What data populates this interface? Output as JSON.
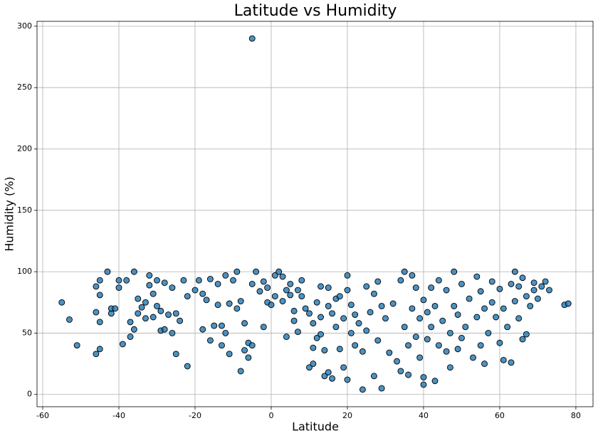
{
  "chart_data": {
    "type": "scatter",
    "title": "Latitude vs Humidity",
    "x_label": "Latitude",
    "y_label": "Humidity (%)",
    "xlim": [
      -61.5,
      84.5
    ],
    "ylim": [
      -10,
      304
    ],
    "xticks": [
      -60,
      -40,
      -20,
      0,
      20,
      40,
      60,
      80
    ],
    "yticks": [
      0,
      50,
      100,
      150,
      200,
      250,
      300
    ],
    "grid": true,
    "series": [
      {
        "color": "#1f77b4",
        "x": [
          -55,
          -53,
          -51,
          -46,
          -46,
          -45,
          -45,
          -45,
          -46,
          -45,
          -43,
          -42,
          -42,
          -41,
          -40,
          -40,
          -39,
          -38,
          -37,
          -37,
          -36,
          -36,
          -35,
          -35,
          -34,
          -33,
          -33,
          -32,
          -32,
          -31,
          -31,
          -30,
          -30,
          -29,
          -29,
          -28,
          -28,
          -27,
          -26,
          -26,
          -25,
          -25,
          -24,
          -23,
          -22,
          -22,
          -20,
          -19,
          -18,
          -18,
          -17,
          -16,
          -16,
          -15,
          -14,
          -14,
          -13,
          -13,
          -12,
          -12,
          -11,
          -11,
          -10,
          -9,
          -9,
          -8,
          -8,
          -7,
          -7,
          -6,
          -6,
          -5,
          -5,
          -4,
          -3,
          -2,
          -2,
          -1,
          -1,
          0,
          -5,
          1,
          1,
          2,
          3,
          3,
          4,
          4,
          5,
          5,
          6,
          6,
          7,
          7,
          8,
          8,
          9,
          10,
          10,
          11,
          11,
          11,
          12,
          12,
          13,
          13,
          13,
          14,
          14,
          15,
          15,
          15,
          16,
          16,
          17,
          17,
          18,
          18,
          19,
          19,
          20,
          20,
          20,
          21,
          21,
          22,
          22,
          23,
          24,
          24,
          25,
          25,
          26,
          27,
          27,
          28,
          28,
          29,
          29,
          30,
          31,
          32,
          33,
          34,
          34,
          35,
          35,
          36,
          36,
          37,
          37,
          38,
          38,
          39,
          39,
          40,
          40,
          40,
          41,
          41,
          42,
          42,
          43,
          43,
          44,
          44,
          45,
          46,
          46,
          47,
          47,
          48,
          48,
          49,
          49,
          50,
          50,
          51,
          52,
          53,
          54,
          54,
          55,
          55,
          56,
          56,
          57,
          58,
          58,
          59,
          60,
          60,
          61,
          61,
          62,
          63,
          63,
          64,
          64,
          65,
          65,
          66,
          66,
          67,
          67,
          68,
          69,
          69,
          70,
          71,
          72,
          73,
          77,
          78
        ],
        "values": [
          75,
          61,
          40,
          67,
          88,
          81,
          59,
          37,
          33,
          93,
          100,
          66,
          70,
          70,
          93,
          87,
          41,
          93,
          47,
          59,
          53,
          100,
          78,
          66,
          71,
          62,
          75,
          89,
          97,
          82,
          63,
          93,
          72,
          68,
          52,
          91,
          53,
          65,
          50,
          87,
          33,
          66,
          60,
          93,
          80,
          23,
          85,
          93,
          53,
          82,
          77,
          94,
          44,
          56,
          73,
          90,
          56,
          40,
          97,
          50,
          74,
          33,
          93,
          100,
          70,
          76,
          19,
          36,
          58,
          42,
          30,
          90,
          40,
          100,
          84,
          92,
          55,
          75,
          87,
          73,
          290,
          97,
          80,
          100,
          96,
          76,
          85,
          47,
          90,
          81,
          68,
          60,
          85,
          51,
          80,
          93,
          70,
          66,
          22,
          58,
          38,
          25,
          75,
          46,
          88,
          63,
          49,
          15,
          36,
          72,
          18,
          87,
          66,
          13,
          55,
          78,
          37,
          80,
          62,
          22,
          85,
          97,
          12,
          50,
          73,
          40,
          65,
          58,
          4,
          35,
          88,
          52,
          67,
          15,
          82,
          92,
          44,
          5,
          72,
          62,
          34,
          74,
          27,
          93,
          19,
          100,
          55,
          40,
          16,
          70,
          97,
          47,
          87,
          62,
          30,
          14,
          77,
          8,
          45,
          67,
          87,
          55,
          11,
          72,
          93,
          40,
          60,
          85,
          35,
          50,
          22,
          100,
          72,
          65,
          37,
          90,
          46,
          55,
          78,
          30,
          96,
          63,
          40,
          84,
          25,
          70,
          50,
          92,
          75,
          63,
          86,
          42,
          70,
          28,
          55,
          90,
          26,
          100,
          76,
          62,
          88,
          45,
          95,
          80,
          49,
          72,
          91,
          85,
          78,
          88,
          92,
          85,
          73,
          74
        ]
      }
    ]
  }
}
